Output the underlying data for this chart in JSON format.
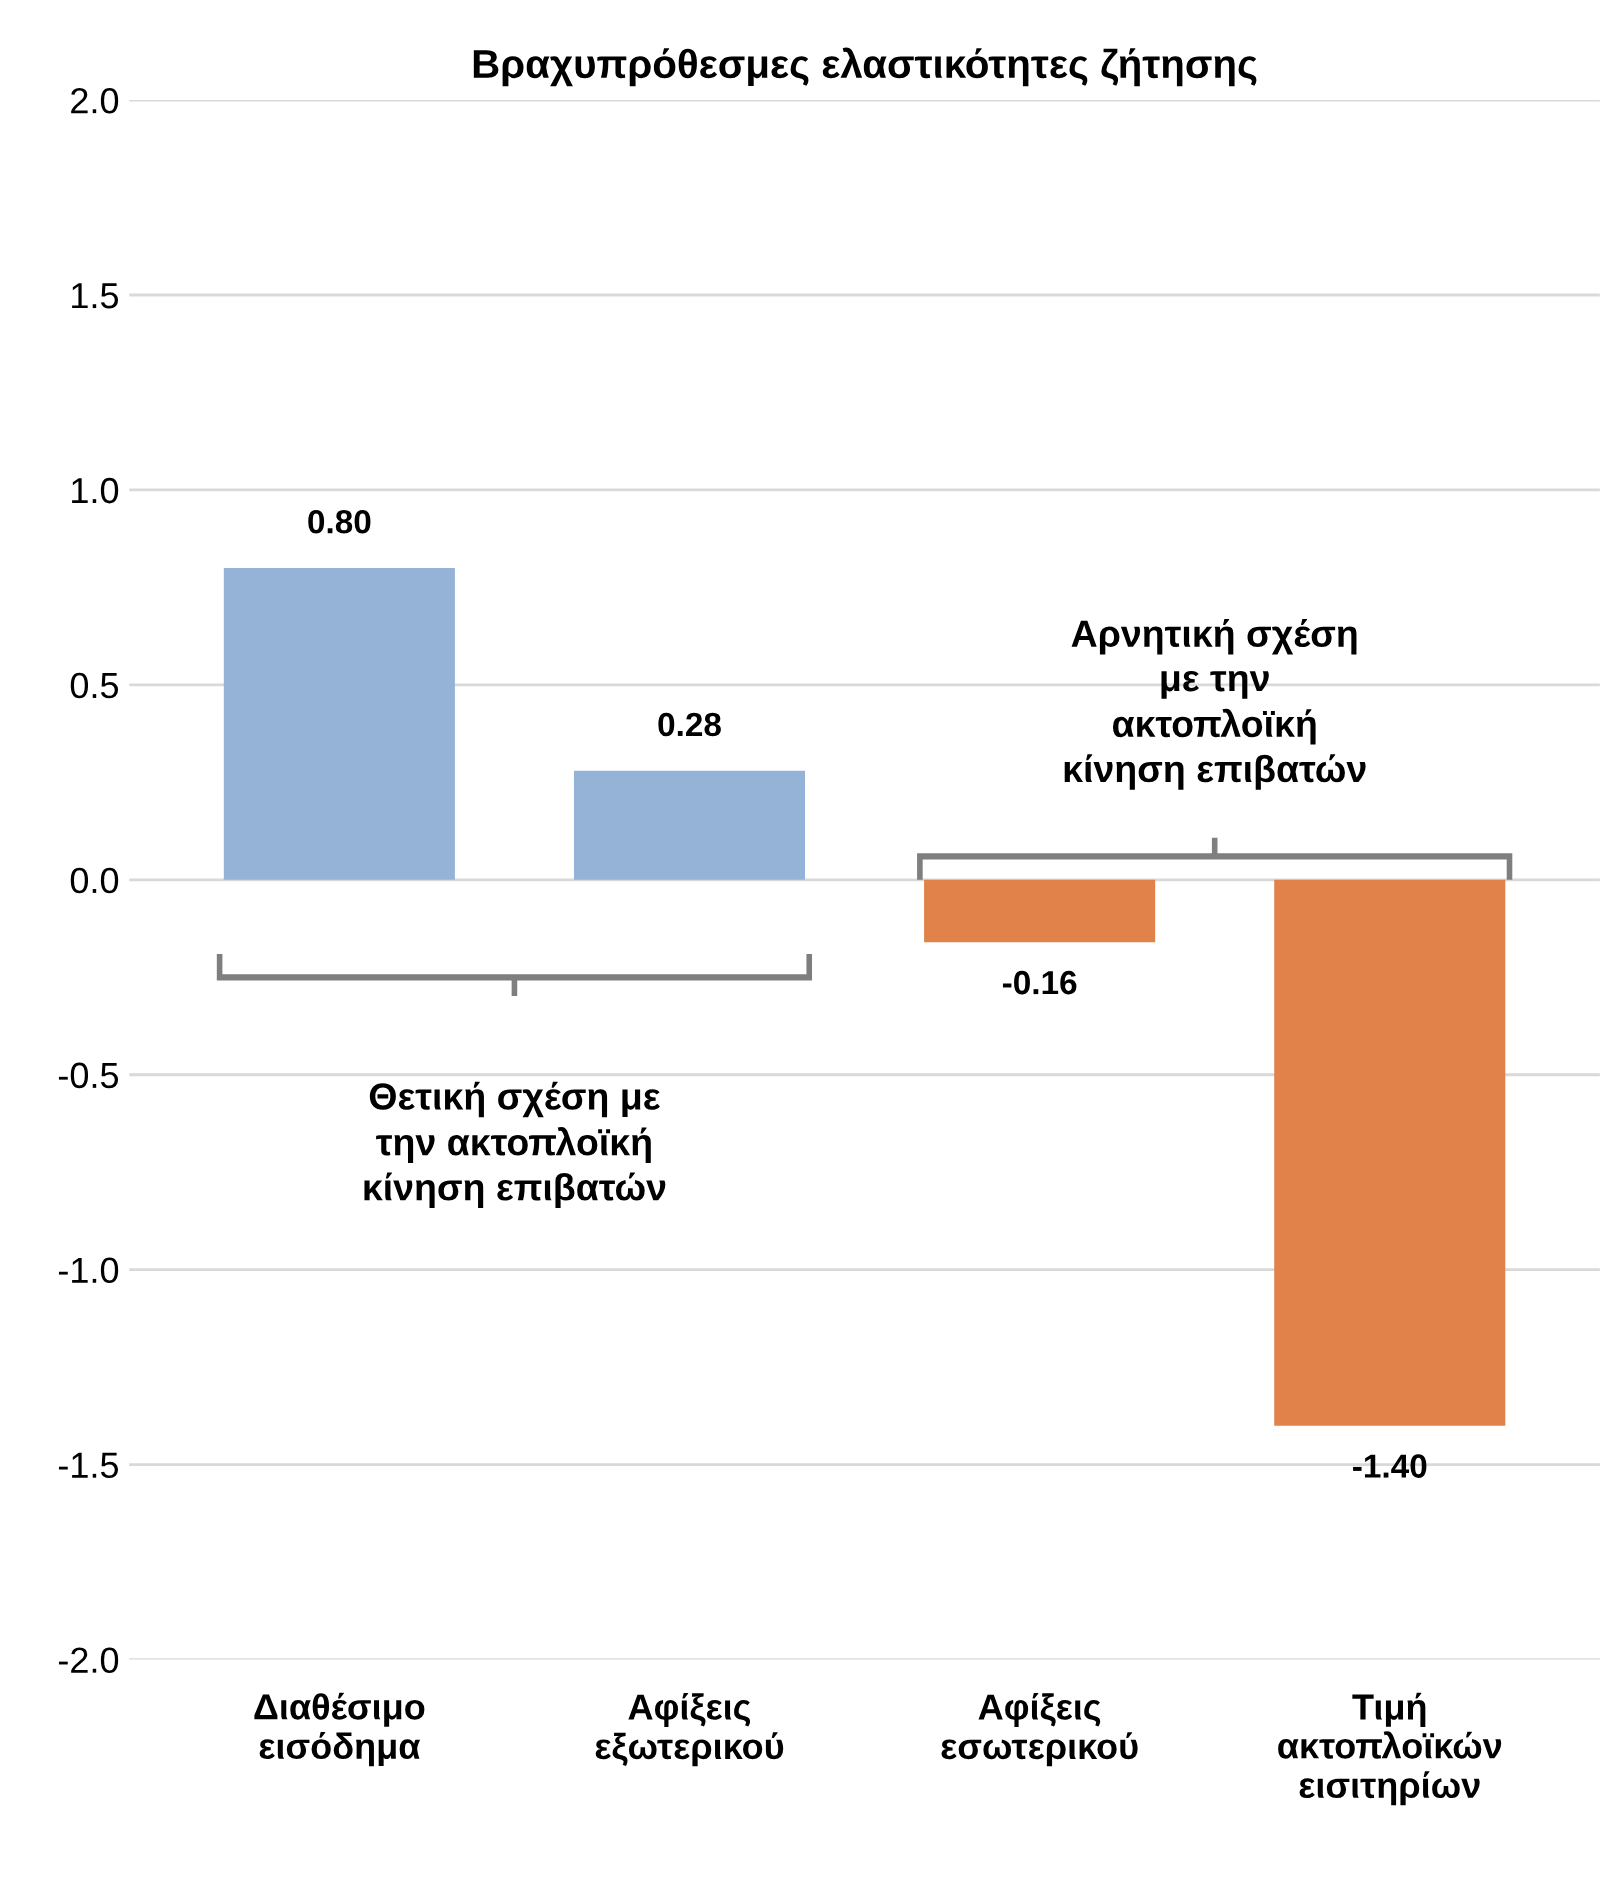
{
  "chart_data": {
    "type": "bar",
    "title": "Βραχυπρόθεσμες ελαστικότητες ζήτησης",
    "categories": [
      "Διαθέσιμο\nεισόδημα",
      "Αφίξεις\nεξωτερικού",
      "Αφίξεις\nεσωτερικού",
      "Τιμή\nακτοπλοϊκών\nεισιτηρίων"
    ],
    "values": [
      0.8,
      0.28,
      -0.16,
      -1.4
    ],
    "colors": [
      "#95b3d7",
      "#95b3d7",
      "#e0824a",
      "#e0824a"
    ],
    "value_labels": [
      "0.80",
      "0.28",
      "-0.16",
      "-1.40"
    ],
    "ylim": [
      -2.0,
      2.0
    ],
    "yticks": [
      {
        "value": -2.0,
        "label": "-2.0"
      },
      {
        "value": -1.5,
        "label": "-1.5"
      },
      {
        "value": -1.0,
        "label": "-1.0"
      },
      {
        "value": -0.5,
        "label": "-0.5"
      },
      {
        "value": 0.0,
        "label": "0.0"
      },
      {
        "value": 0.5,
        "label": "0.5"
      },
      {
        "value": 1.0,
        "label": "1.0"
      },
      {
        "value": 1.5,
        "label": "1.5"
      },
      {
        "value": 2.0,
        "label": "2.0"
      }
    ],
    "grid": "y",
    "annotations": [
      "Θετική σχέση με\nτην ακτοπλοϊκή\nκίνηση επιβατών",
      "Αρνητική σχέση\nμε την\nακτοπλοϊκή\nκίνηση επιβατών"
    ]
  }
}
